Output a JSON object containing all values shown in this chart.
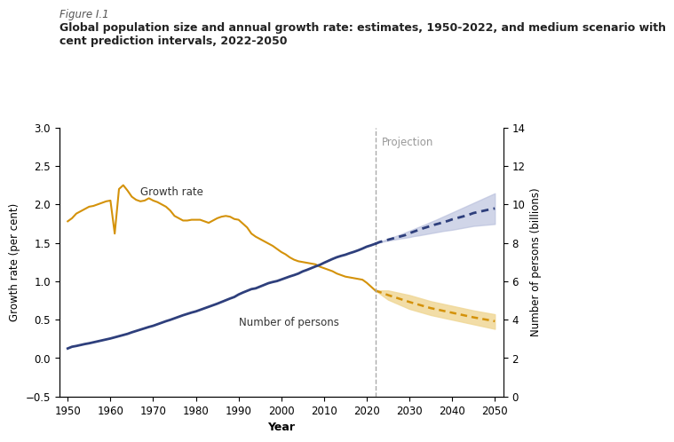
{
  "figure_label": "Figure I.1",
  "title_line1": "Global population size and annual growth rate: estimates, 1950-2022, and medium scenario with",
  "title_line2": "cent prediction intervals, 2022-2050",
  "xlabel": "Year",
  "ylabel_left": "Growth rate (per cent)",
  "ylabel_right": "Number of persons (billions)",
  "xlim": [
    1948,
    2052
  ],
  "ylim_left": [
    -0.5,
    3.0
  ],
  "ylim_right": [
    0,
    14
  ],
  "xticks": [
    1950,
    1960,
    1970,
    1980,
    1990,
    2000,
    2010,
    2020,
    2030,
    2040,
    2050
  ],
  "yticks_left": [
    -0.5,
    0.0,
    0.5,
    1.0,
    1.5,
    2.0,
    2.5,
    3.0
  ],
  "yticks_right": [
    0,
    2,
    4,
    6,
    8,
    10,
    12,
    14
  ],
  "projection_year": 2022,
  "projection_label": "Projection",
  "color_population": "#2e3f7c",
  "color_growth": "#d4920a",
  "color_pop_band": "#b8bfdc",
  "color_growth_band": "#f0d898",
  "annotation_growth": "Growth rate",
  "annotation_persons": "Number of persons",
  "growth_rate_years": [
    1950,
    1951,
    1952,
    1953,
    1954,
    1955,
    1956,
    1957,
    1958,
    1959,
    1960,
    1961,
    1962,
    1963,
    1964,
    1965,
    1966,
    1967,
    1968,
    1969,
    1970,
    1971,
    1972,
    1973,
    1974,
    1975,
    1976,
    1977,
    1978,
    1979,
    1980,
    1981,
    1982,
    1983,
    1984,
    1985,
    1986,
    1987,
    1988,
    1989,
    1990,
    1991,
    1992,
    1993,
    1994,
    1995,
    1996,
    1997,
    1998,
    1999,
    2000,
    2001,
    2002,
    2003,
    2004,
    2005,
    2006,
    2007,
    2008,
    2009,
    2010,
    2011,
    2012,
    2013,
    2014,
    2015,
    2016,
    2017,
    2018,
    2019,
    2020,
    2021,
    2022
  ],
  "growth_rate_values": [
    1.78,
    1.82,
    1.88,
    1.91,
    1.94,
    1.97,
    1.98,
    2.0,
    2.02,
    2.04,
    2.05,
    1.62,
    2.2,
    2.25,
    2.18,
    2.1,
    2.06,
    2.04,
    2.05,
    2.08,
    2.05,
    2.03,
    2.0,
    1.97,
    1.92,
    1.85,
    1.82,
    1.79,
    1.79,
    1.8,
    1.8,
    1.8,
    1.78,
    1.76,
    1.79,
    1.82,
    1.84,
    1.85,
    1.84,
    1.81,
    1.8,
    1.75,
    1.7,
    1.62,
    1.58,
    1.55,
    1.52,
    1.49,
    1.46,
    1.42,
    1.38,
    1.35,
    1.31,
    1.28,
    1.26,
    1.25,
    1.24,
    1.23,
    1.22,
    1.19,
    1.17,
    1.15,
    1.13,
    1.1,
    1.08,
    1.06,
    1.05,
    1.04,
    1.03,
    1.02,
    0.98,
    0.93,
    0.88
  ],
  "population_years": [
    1950,
    1951,
    1952,
    1953,
    1954,
    1955,
    1956,
    1957,
    1958,
    1959,
    1960,
    1961,
    1962,
    1963,
    1964,
    1965,
    1966,
    1967,
    1968,
    1969,
    1970,
    1971,
    1972,
    1973,
    1974,
    1975,
    1976,
    1977,
    1978,
    1979,
    1980,
    1981,
    1982,
    1983,
    1984,
    1985,
    1986,
    1987,
    1988,
    1989,
    1990,
    1991,
    1992,
    1993,
    1994,
    1995,
    1996,
    1997,
    1998,
    1999,
    2000,
    2001,
    2002,
    2003,
    2004,
    2005,
    2006,
    2007,
    2008,
    2009,
    2010,
    2011,
    2012,
    2013,
    2014,
    2015,
    2016,
    2017,
    2018,
    2019,
    2020,
    2021,
    2022
  ],
  "population_values_billions": [
    2.5,
    2.59,
    2.63,
    2.68,
    2.73,
    2.77,
    2.82,
    2.87,
    2.92,
    2.97,
    3.02,
    3.08,
    3.14,
    3.2,
    3.26,
    3.34,
    3.41,
    3.48,
    3.55,
    3.62,
    3.68,
    3.76,
    3.84,
    3.92,
    3.99,
    4.07,
    4.15,
    4.23,
    4.3,
    4.37,
    4.43,
    4.51,
    4.59,
    4.67,
    4.75,
    4.83,
    4.92,
    5.01,
    5.1,
    5.18,
    5.31,
    5.41,
    5.5,
    5.59,
    5.63,
    5.72,
    5.81,
    5.9,
    5.96,
    6.01,
    6.09,
    6.17,
    6.25,
    6.32,
    6.4,
    6.51,
    6.59,
    6.68,
    6.77,
    6.85,
    6.96,
    7.06,
    7.16,
    7.25,
    7.32,
    7.38,
    7.46,
    7.53,
    7.61,
    7.7,
    7.8,
    7.87,
    7.95
  ],
  "pop_proj_years": [
    2022,
    2023,
    2024,
    2025,
    2026,
    2027,
    2028,
    2029,
    2030,
    2031,
    2032,
    2033,
    2034,
    2035,
    2036,
    2037,
    2038,
    2039,
    2040,
    2041,
    2042,
    2043,
    2044,
    2045,
    2046,
    2047,
    2048,
    2049,
    2050
  ],
  "pop_proj_median": [
    7.95,
    8.04,
    8.1,
    8.16,
    8.22,
    8.28,
    8.34,
    8.4,
    8.5,
    8.58,
    8.66,
    8.74,
    8.81,
    8.88,
    8.95,
    9.01,
    9.08,
    9.14,
    9.22,
    9.28,
    9.34,
    9.4,
    9.47,
    9.55,
    9.6,
    9.65,
    9.7,
    9.75,
    9.79
  ],
  "pop_proj_low": [
    7.95,
    8.02,
    8.07,
    8.11,
    8.15,
    8.19,
    8.23,
    8.26,
    8.3,
    8.35,
    8.38,
    8.42,
    8.46,
    8.5,
    8.54,
    8.58,
    8.62,
    8.65,
    8.68,
    8.72,
    8.76,
    8.8,
    8.84,
    8.88,
    8.9,
    8.92,
    8.94,
    8.96,
    8.98
  ],
  "pop_proj_high": [
    7.95,
    8.06,
    8.13,
    8.21,
    8.29,
    8.37,
    8.45,
    8.54,
    8.63,
    8.72,
    8.81,
    8.9,
    8.99,
    9.09,
    9.18,
    9.28,
    9.38,
    9.48,
    9.58,
    9.68,
    9.78,
    9.88,
    9.98,
    10.08,
    10.18,
    10.28,
    10.38,
    10.48,
    10.58
  ],
  "growth_proj_years": [
    2022,
    2025,
    2030,
    2035,
    2040,
    2045,
    2050
  ],
  "growth_proj_median": [
    0.88,
    0.82,
    0.73,
    0.65,
    0.59,
    0.53,
    0.48
  ],
  "growth_proj_low": [
    0.88,
    0.76,
    0.64,
    0.56,
    0.5,
    0.44,
    0.38
  ],
  "growth_proj_high": [
    0.88,
    0.88,
    0.82,
    0.74,
    0.68,
    0.62,
    0.57
  ]
}
